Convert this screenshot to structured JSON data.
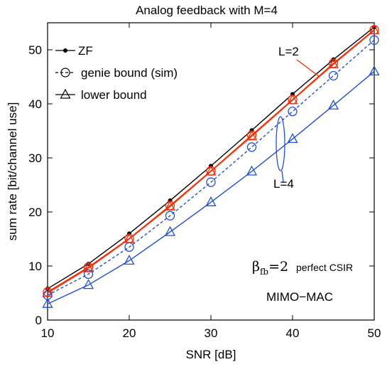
{
  "chart_data": {
    "type": "line",
    "title": "Analog feedback with M=4",
    "xlabel": "SNR [dB]",
    "ylabel": "sum rate [bit/channel use]",
    "xlim": [
      10,
      50
    ],
    "ylim": [
      0,
      55
    ],
    "xticks": [
      10,
      20,
      30,
      40,
      50
    ],
    "yticks": [
      0,
      10,
      20,
      30,
      40,
      50
    ],
    "grid": false,
    "legend_position": "top-left",
    "legend": [
      {
        "label": "ZF",
        "marker": "dot",
        "dash": "solid"
      },
      {
        "label": "genie bound  (sim)",
        "marker": "circle",
        "dash": "dashed"
      },
      {
        "label": "lower bound",
        "marker": "triangle",
        "dash": "solid"
      }
    ],
    "x": [
      10,
      15,
      20,
      25,
      30,
      35,
      40,
      45,
      50
    ],
    "series": [
      {
        "color": "#000000",
        "marker": "dot",
        "dash": "solid",
        "values": [
          5.8,
          10.4,
          16.0,
          22.1,
          28.5,
          35.1,
          41.8,
          48.2,
          54.2
        ]
      },
      {
        "color": "#ff2a00",
        "marker": "circle",
        "dash": "solid",
        "values": [
          5.2,
          9.8,
          15.1,
          21.2,
          27.6,
          34.2,
          40.8,
          47.5,
          53.7
        ]
      },
      {
        "color": "#ff2a00",
        "marker": "triangle",
        "dash": "solid",
        "values": [
          5.0,
          9.6,
          15.0,
          21.0,
          27.5,
          34.0,
          40.7,
          47.3,
          53.6
        ]
      },
      {
        "color": "#1f4fe0",
        "marker": "circle",
        "dash": "dashed",
        "values": [
          4.6,
          8.5,
          13.5,
          19.3,
          25.5,
          32.0,
          38.6,
          45.2,
          51.8
        ]
      },
      {
        "color": "#1f4fe0",
        "marker": "triangle",
        "dash": "solid",
        "values": [
          3.0,
          6.5,
          11.0,
          16.3,
          21.8,
          27.5,
          33.5,
          39.7,
          46.0
        ]
      }
    ],
    "annotations": {
      "l2": "L=2",
      "l4": "L=4",
      "beta_symbol": "β",
      "beta_sub": "fb",
      "beta_rest": "=2",
      "perfect_csir": "perfect CSIR",
      "system": "MIMO−MAC"
    }
  }
}
